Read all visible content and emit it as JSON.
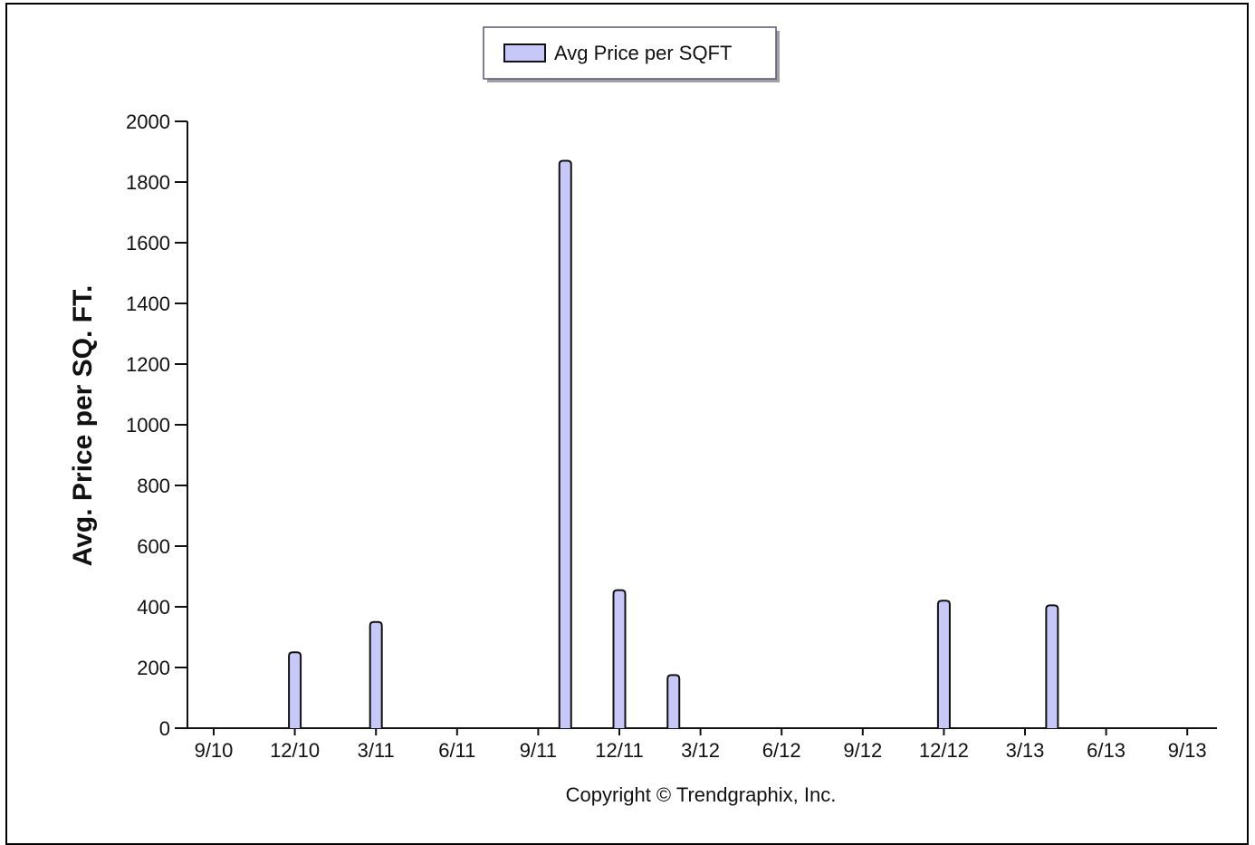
{
  "chart_data": {
    "type": "bar",
    "categories": [
      "9/10",
      "12/10",
      "3/11",
      "6/11",
      "9/11",
      "12/11",
      "3/12",
      "6/12",
      "9/12",
      "12/12",
      "3/13",
      "6/13",
      "9/13"
    ],
    "series": [
      {
        "name": "Avg Price per SQFT",
        "color": "#c8c8f8",
        "points": [
          {
            "x": "12/10",
            "y": 250
          },
          {
            "x": "3/11",
            "y": 350
          },
          {
            "x": "9/11 + 1 month",
            "y": 1870
          },
          {
            "x": "12/11",
            "y": 455
          },
          {
            "x": "12/11 + 2 months",
            "y": 175
          },
          {
            "x": "12/12",
            "y": 420
          },
          {
            "x": "3/13 + 1 month",
            "y": 405
          }
        ]
      }
    ],
    "ylabel": "Avg. Price per SQ. FT.",
    "ylim": [
      0,
      2000
    ],
    "yticks": [
      0,
      200,
      400,
      600,
      800,
      1000,
      1200,
      1400,
      1600,
      1800,
      2000
    ],
    "legend_position": "top-center",
    "grid": false
  },
  "legend": {
    "label": "Avg Price per SQFT"
  },
  "footer": {
    "copyright": "Copyright © Trendgraphix, Inc."
  },
  "colors": {
    "bar_fill": "#c8c8f8",
    "bar_stroke": "#111111",
    "axis": "#111111"
  }
}
